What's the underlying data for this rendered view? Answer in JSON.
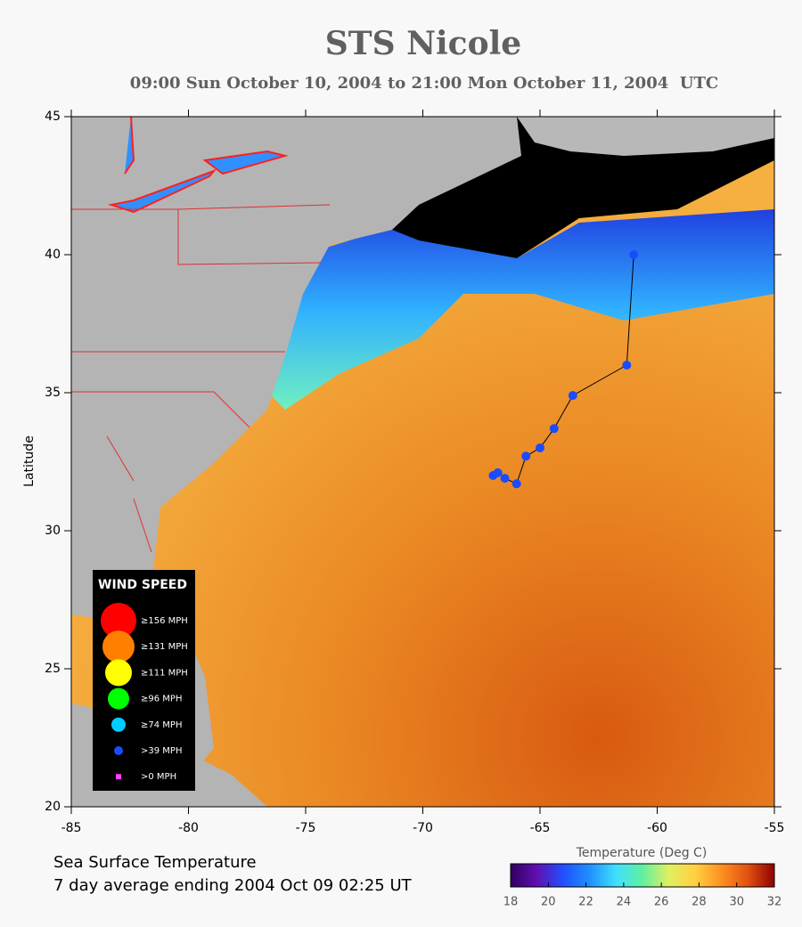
{
  "chart_data": {
    "type": "track",
    "title": "STS Nicole",
    "subtitle": "09:00 Sun October 10, 2004 to 21:00 Mon October 11, 2004  UTC",
    "ylabel": "Latitude",
    "x": [
      -67.0,
      -66.8,
      -66.5,
      -66.0,
      -65.6,
      -65.0,
      -64.4,
      -63.6,
      -61.3,
      -61.0
    ],
    "values": [
      32.0,
      32.1,
      31.9,
      31.7,
      32.7,
      33.0,
      33.7,
      34.9,
      36.0,
      40.0
    ],
    "color": "#1a4cff",
    "line_color": "#000000",
    "xlim": [
      -85,
      -55
    ],
    "ylim": [
      20,
      45
    ],
    "xticks": [
      -85,
      -80,
      -75,
      -70,
      -65,
      -60,
      -55
    ],
    "yticks": [
      20,
      25,
      30,
      35,
      40,
      45
    ],
    "legend": {
      "title": "WIND SPEED",
      "items": [
        {
          "label": "≥156 MPH",
          "color": "#ff0000"
        },
        {
          "label": "≥131 MPH",
          "color": "#ff8000"
        },
        {
          "label": "≥111 MPH",
          "color": "#ffff00"
        },
        {
          "label": "≥96 MPH",
          "color": "#00ff00"
        },
        {
          "label": "≥74 MPH",
          "color": "#00ccff"
        },
        {
          "label": ">39 MPH",
          "color": "#1a4cff"
        },
        {
          "label": ">0 MPH",
          "color": "#ff40ff"
        }
      ]
    },
    "colorbar": {
      "label": "Temperature (Deg C)",
      "lim": [
        18,
        32
      ],
      "ticks": [
        18,
        20,
        22,
        24,
        26,
        28,
        30,
        32
      ],
      "colors": [
        "#300060",
        "#6010b0",
        "#2050ff",
        "#2090ff",
        "#40e0ff",
        "#60f0a0",
        "#e0f060",
        "#ffd040",
        "#ff9020",
        "#e05010",
        "#900000"
      ]
    },
    "footer": [
      "Sea Surface Temperature",
      "7 day average ending 2004 Oct 09 02:25 UT"
    ]
  }
}
